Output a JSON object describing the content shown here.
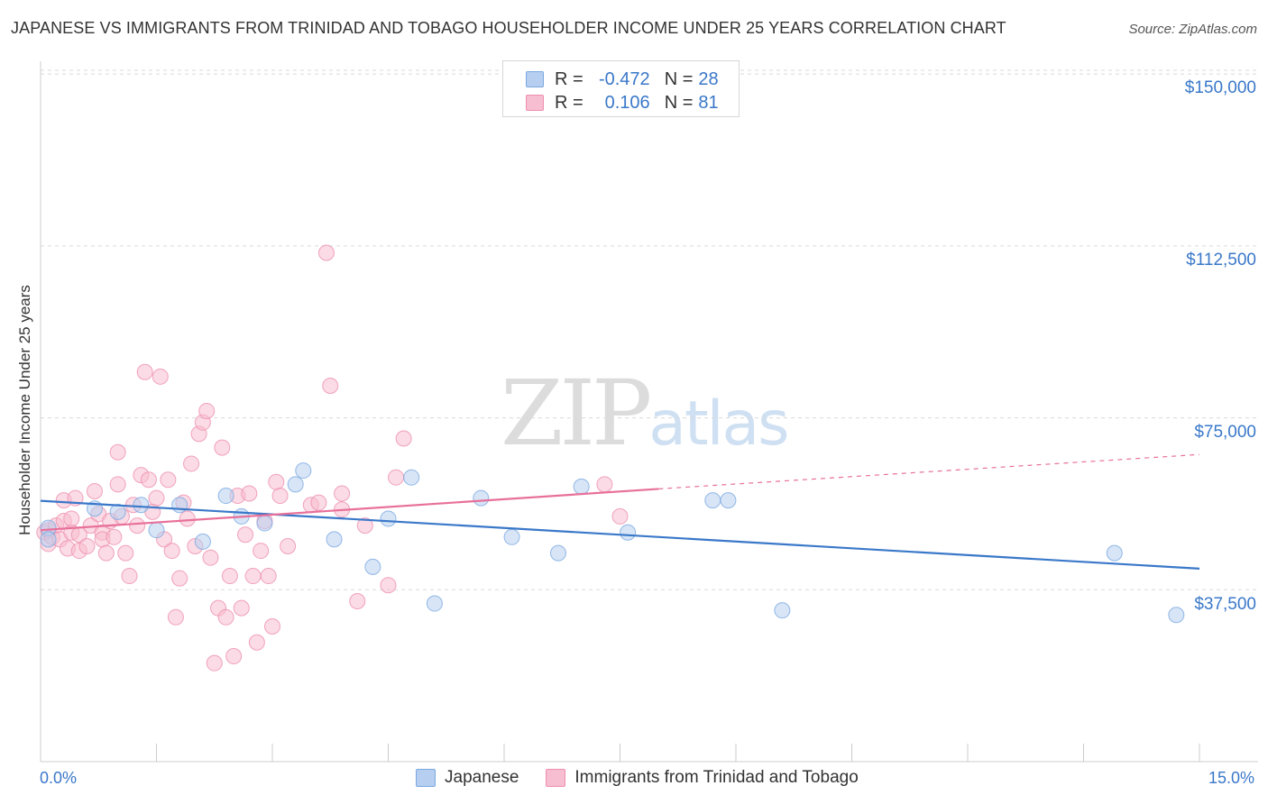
{
  "title": "JAPANESE VS IMMIGRANTS FROM TRINIDAD AND TOBAGO HOUSEHOLDER INCOME UNDER 25 YEARS CORRELATION CHART",
  "source": "Source: ZipAtlas.com",
  "watermark": {
    "zip": "ZIP",
    "atlas": "atlas"
  },
  "legend_top": [
    {
      "r_label": "R =",
      "r_value": "-0.472",
      "n_label": "N =",
      "n_value": "28",
      "color": "#a9c8ef",
      "border": "#7aa7e0"
    },
    {
      "r_label": "R =",
      "r_value": "0.106",
      "n_label": "N =",
      "n_value": "81",
      "color": "#f7b8cc",
      "border": "#ee8fae"
    }
  ],
  "legend_bottom": [
    {
      "label": "Japanese",
      "color": "#a9c8ef",
      "border": "#7aa7e0"
    },
    {
      "label": "Immigrants from Trinidad and Tobago",
      "color": "#f7b8cc",
      "border": "#ee8fae"
    }
  ],
  "colors": {
    "blue": "#3a78c9",
    "blue_fill": "#b6cff0",
    "pink": "#e8709a",
    "pink_fill": "#f7bdd0",
    "grid": "#d9d9d9"
  },
  "chart_data": {
    "type": "scatter",
    "title": "JAPANESE VS IMMIGRANTS FROM TRINIDAD AND TOBAGO HOUSEHOLDER INCOME UNDER 25 YEARS CORRELATION CHART",
    "xlabel": "",
    "ylabel": "Householder Income Under 25 years",
    "xlim": [
      0,
      15
    ],
    "ylim": [
      0,
      152000
    ],
    "x_tick_labels": [
      "0.0%",
      "15.0%"
    ],
    "y_ticks": [
      37500,
      75000,
      112500,
      150000
    ],
    "y_tick_labels": [
      "$37,500",
      "$75,000",
      "$112,500",
      "$150,000"
    ],
    "grid": "horizontal dashed",
    "legend_position": "top-center",
    "series": [
      {
        "name": "Japanese",
        "r": -0.472,
        "n": 28,
        "trend": {
          "x": [
            0,
            15
          ],
          "y": [
            56900,
            42100
          ]
        },
        "points": [
          [
            0.1,
            51000
          ],
          [
            0.7,
            55200
          ],
          [
            1.0,
            54500
          ],
          [
            1.3,
            56000
          ],
          [
            1.5,
            50500
          ],
          [
            1.8,
            56000
          ],
          [
            2.1,
            48000
          ],
          [
            2.4,
            58000
          ],
          [
            2.6,
            53500
          ],
          [
            2.9,
            52000
          ],
          [
            3.3,
            60500
          ],
          [
            3.4,
            63500
          ],
          [
            3.8,
            48500
          ],
          [
            4.3,
            42500
          ],
          [
            4.5,
            53000
          ],
          [
            4.8,
            62000
          ],
          [
            5.1,
            34500
          ],
          [
            5.7,
            57500
          ],
          [
            6.1,
            49000
          ],
          [
            6.7,
            45500
          ],
          [
            7.0,
            60000
          ],
          [
            7.6,
            50000
          ],
          [
            8.7,
            57000
          ],
          [
            8.9,
            57000
          ],
          [
            9.6,
            33000
          ],
          [
            13.9,
            45500
          ],
          [
            14.7,
            32000
          ],
          [
            0.1,
            48500
          ]
        ]
      },
      {
        "name": "Immigrants from Trinidad and Tobago",
        "r": 0.106,
        "n": 81,
        "trend": {
          "x": [
            0,
            8.0
          ],
          "y": [
            50500,
            59500
          ],
          "dashed_to": {
            "x": 15,
            "y": 67000
          }
        },
        "points": [
          [
            0.05,
            50000
          ],
          [
            0.1,
            47500
          ],
          [
            0.1,
            50500
          ],
          [
            0.15,
            49000
          ],
          [
            0.2,
            51500
          ],
          [
            0.25,
            48500
          ],
          [
            0.3,
            52500
          ],
          [
            0.3,
            57000
          ],
          [
            0.35,
            46500
          ],
          [
            0.4,
            50000
          ],
          [
            0.45,
            57500
          ],
          [
            0.4,
            53000
          ],
          [
            0.5,
            46000
          ],
          [
            0.5,
            49500
          ],
          [
            0.6,
            47000
          ],
          [
            0.65,
            51500
          ],
          [
            0.7,
            59000
          ],
          [
            0.75,
            54000
          ],
          [
            0.8,
            50000
          ],
          [
            0.8,
            48500
          ],
          [
            0.85,
            45500
          ],
          [
            0.9,
            52500
          ],
          [
            0.95,
            49000
          ],
          [
            1.0,
            60500
          ],
          [
            1.0,
            67500
          ],
          [
            1.05,
            53500
          ],
          [
            1.1,
            45500
          ],
          [
            1.15,
            40500
          ],
          [
            1.2,
            56000
          ],
          [
            1.25,
            51500
          ],
          [
            1.3,
            62500
          ],
          [
            1.35,
            85000
          ],
          [
            1.4,
            61500
          ],
          [
            1.45,
            54500
          ],
          [
            1.5,
            57500
          ],
          [
            1.55,
            84000
          ],
          [
            1.6,
            48500
          ],
          [
            1.65,
            61500
          ],
          [
            1.7,
            46000
          ],
          [
            1.75,
            31500
          ],
          [
            1.8,
            40000
          ],
          [
            1.85,
            56500
          ],
          [
            1.9,
            53000
          ],
          [
            1.95,
            65000
          ],
          [
            2.0,
            47000
          ],
          [
            2.05,
            71500
          ],
          [
            2.1,
            74000
          ],
          [
            2.15,
            76500
          ],
          [
            2.2,
            44500
          ],
          [
            2.25,
            21500
          ],
          [
            2.3,
            33500
          ],
          [
            2.35,
            68500
          ],
          [
            2.4,
            31500
          ],
          [
            2.45,
            40500
          ],
          [
            2.5,
            23000
          ],
          [
            2.55,
            58000
          ],
          [
            2.6,
            33500
          ],
          [
            2.65,
            49500
          ],
          [
            2.7,
            58500
          ],
          [
            2.75,
            40500
          ],
          [
            2.8,
            26000
          ],
          [
            2.85,
            46000
          ],
          [
            2.9,
            52500
          ],
          [
            2.95,
            40500
          ],
          [
            3.0,
            29500
          ],
          [
            3.05,
            61000
          ],
          [
            3.1,
            58000
          ],
          [
            3.2,
            47000
          ],
          [
            3.5,
            56000
          ],
          [
            3.6,
            56500
          ],
          [
            3.7,
            111000
          ],
          [
            3.75,
            82000
          ],
          [
            3.9,
            58500
          ],
          [
            4.1,
            35000
          ],
          [
            4.5,
            38500
          ],
          [
            4.6,
            62000
          ],
          [
            4.7,
            70500
          ],
          [
            4.2,
            51500
          ],
          [
            7.3,
            60500
          ],
          [
            7.5,
            53500
          ],
          [
            3.9,
            55000
          ]
        ]
      }
    ]
  }
}
